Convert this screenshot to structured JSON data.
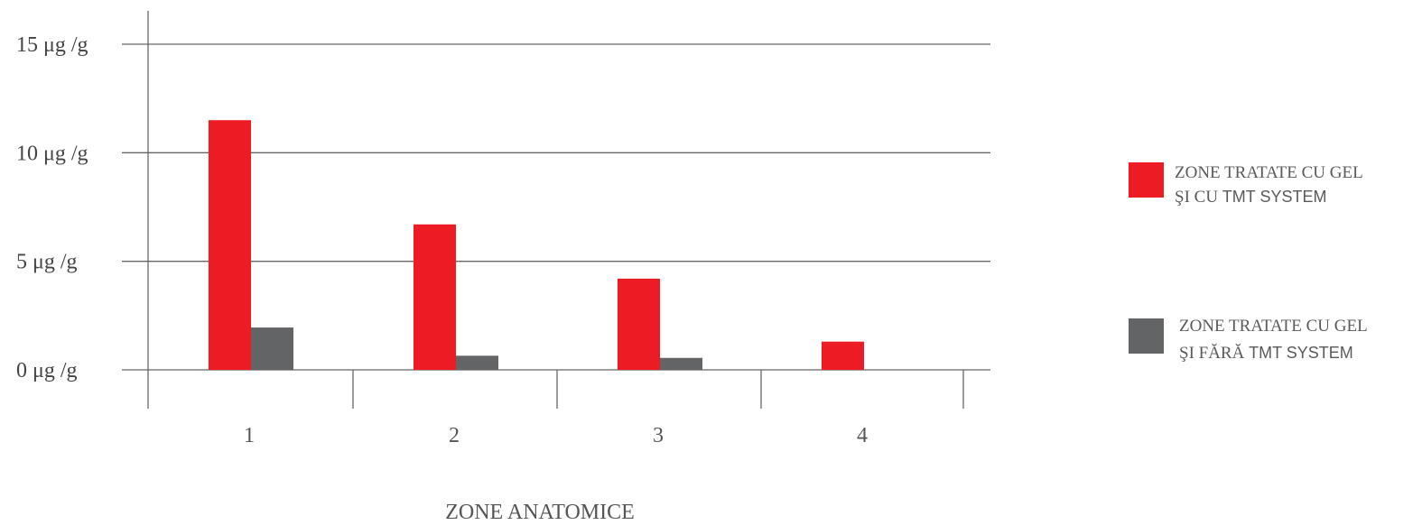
{
  "chart_data": {
    "type": "bar",
    "categories": [
      "1",
      "2",
      "3",
      "4"
    ],
    "series": [
      {
        "name_line1": "ZONE TRATATE CU GEL",
        "name_line2_prefix": "ŞI CU",
        "name_line2_suffix": "TMT SYSTEM",
        "color": "#ed1c24",
        "values": [
          11.5,
          6.7,
          4.2,
          1.3
        ]
      },
      {
        "name_line1": "ZONE TRATATE CU GEL",
        "name_line2_prefix": "ŞI FĂRĂ",
        "name_line2_suffix": "TMT SYSTEM",
        "color": "#636466",
        "values": [
          1.95,
          0.65,
          0.55,
          0
        ]
      }
    ],
    "yticks": [
      {
        "value": 0,
        "label": "0 μg /g"
      },
      {
        "value": 5,
        "label": "5 μg /g"
      },
      {
        "value": 10,
        "label": "10 μg /g"
      },
      {
        "value": 15,
        "label": "15 μg /g"
      }
    ],
    "ylim": [
      0,
      15
    ],
    "xlabel": "ZONE ANATOMICE",
    "grid": true,
    "legend_position": "right"
  }
}
